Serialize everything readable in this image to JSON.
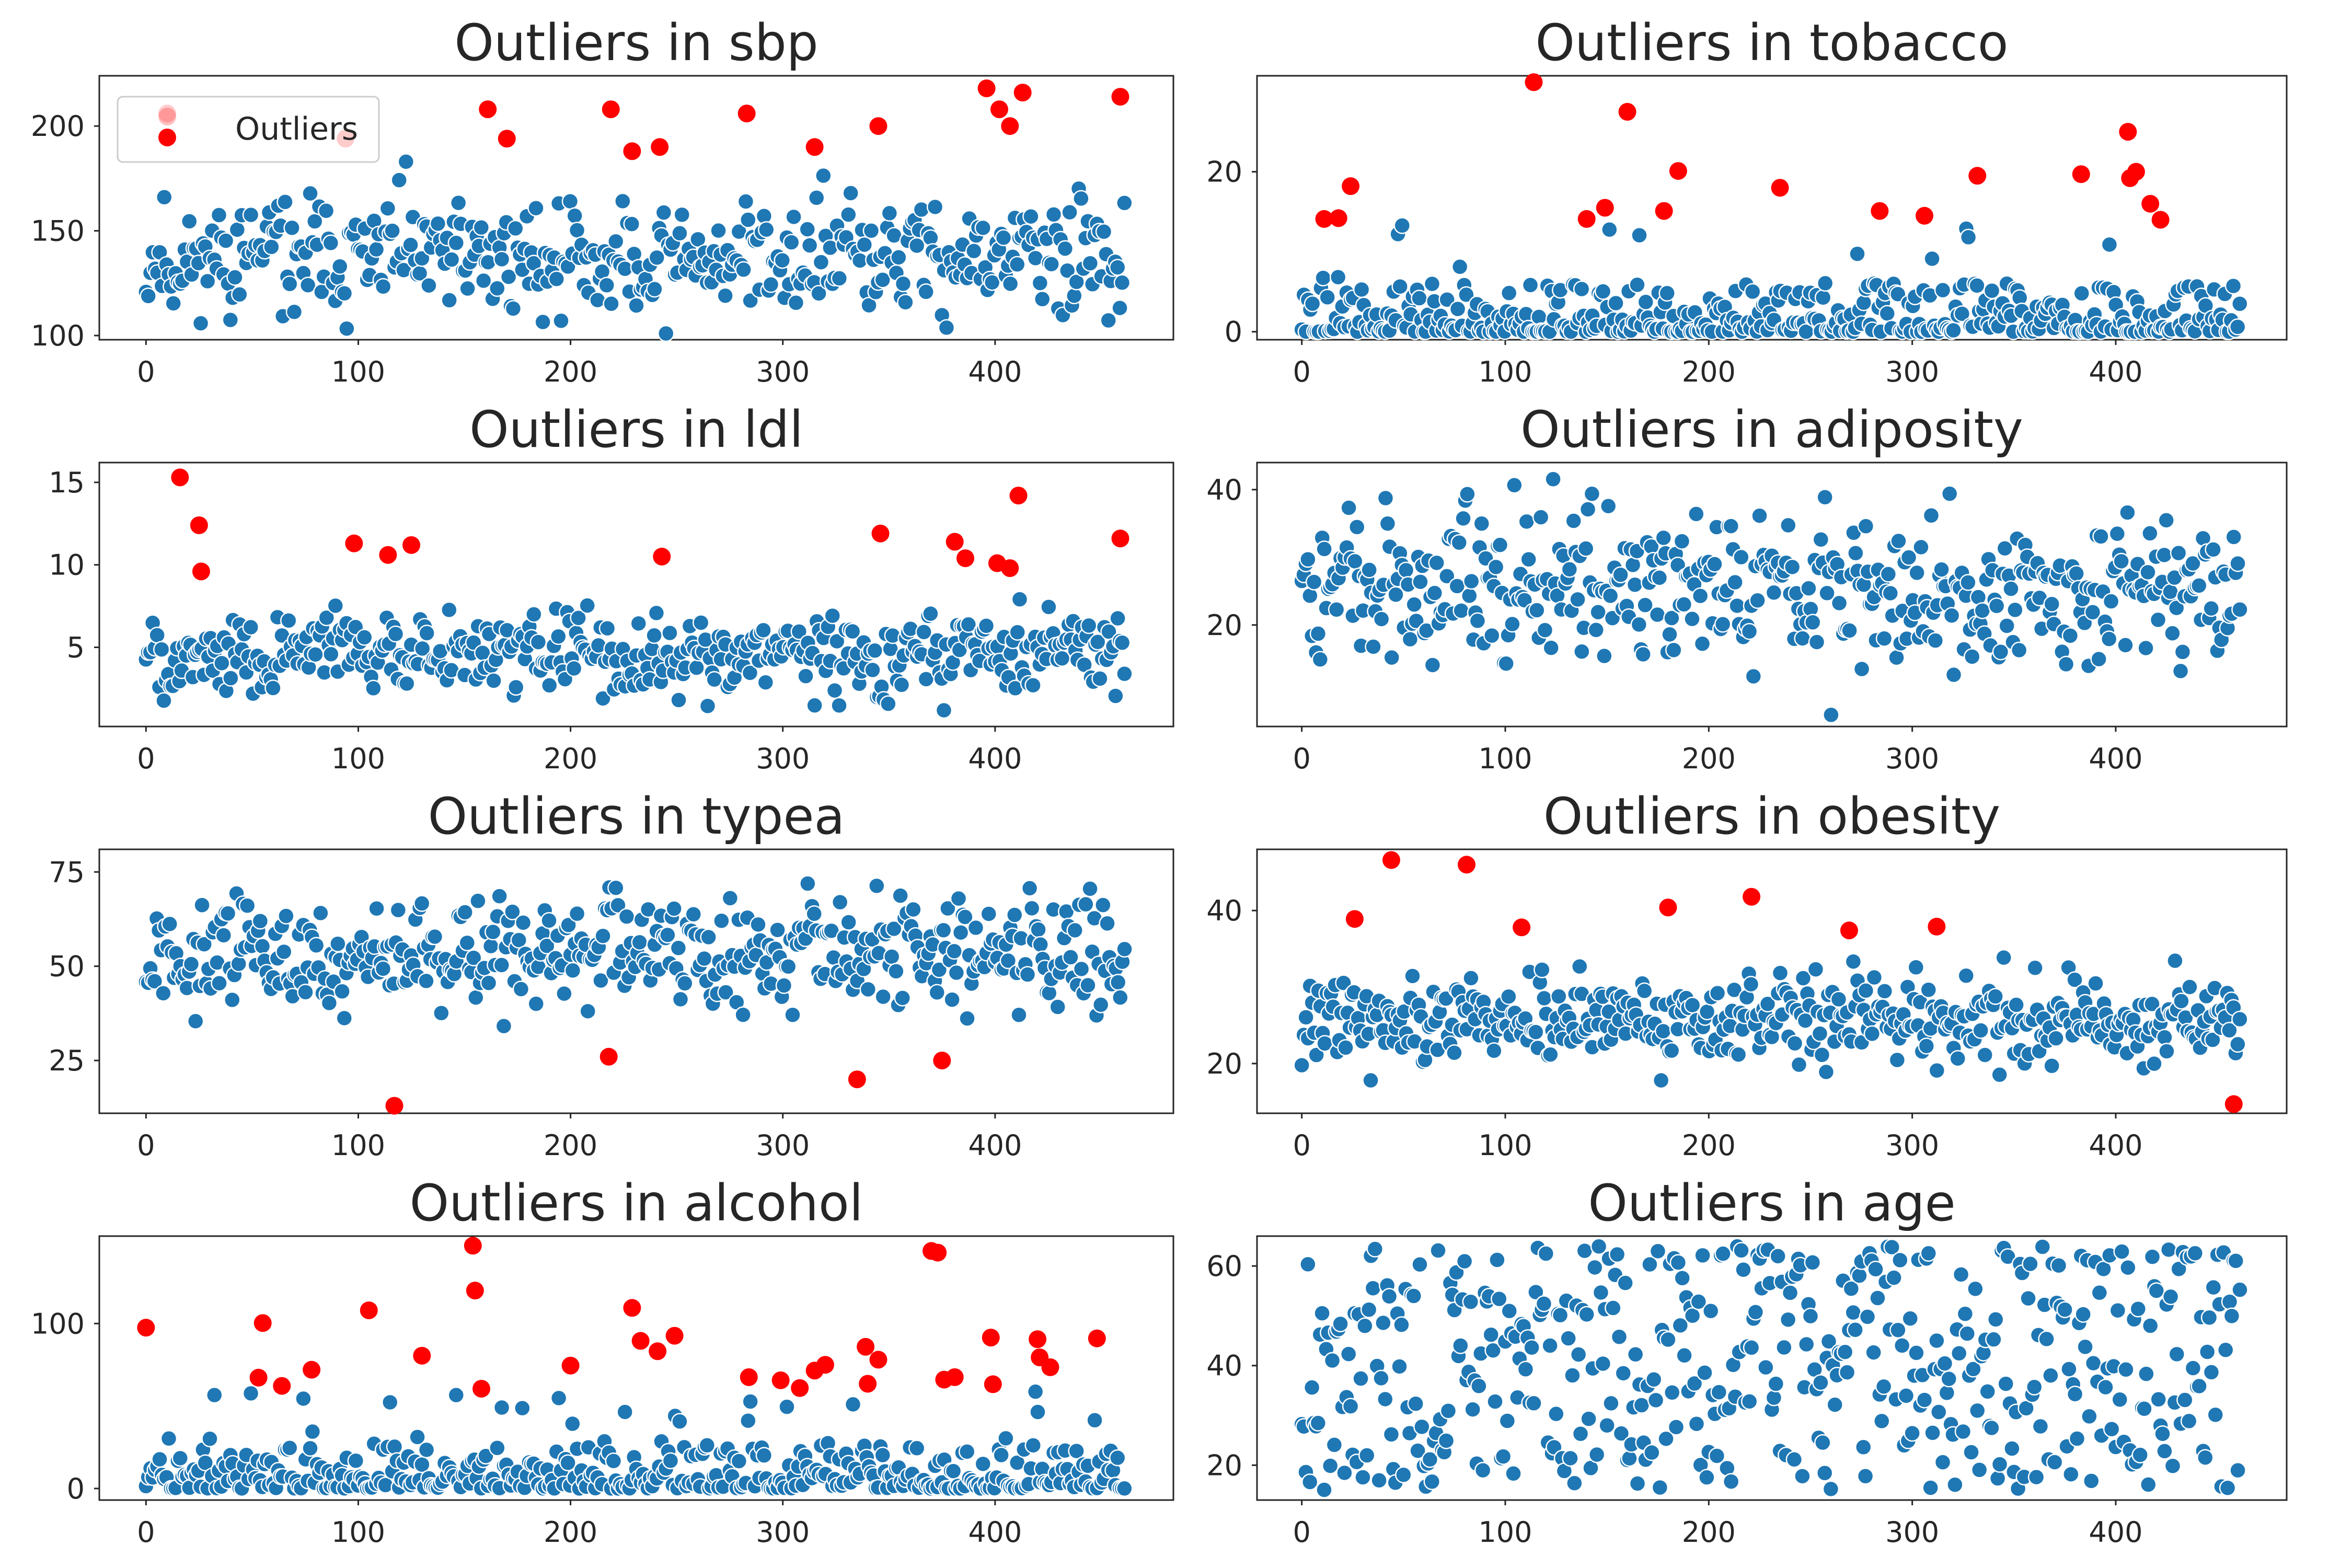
{
  "colors": {
    "normal": "#1f77b4",
    "outlier": "#ff0000",
    "axis": "#262626",
    "background": "#ffffff",
    "point_edge": "#ffffff"
  },
  "chart_data": [
    {
      "type": "scatter",
      "title": "Outliers in sbp",
      "xlim": [
        -22,
        484
      ],
      "ylim": [
        98,
        224
      ],
      "xticks": [
        0,
        100,
        200,
        300,
        400
      ],
      "yticks": [
        100,
        150,
        200
      ],
      "legend": {
        "labels": [
          "Outliers"
        ],
        "placement": "upper-left"
      },
      "outliers": [
        [
          10,
          206
        ],
        [
          94,
          194
        ],
        [
          161,
          208
        ],
        [
          170,
          194
        ],
        [
          219,
          208
        ],
        [
          229,
          188
        ],
        [
          242,
          190
        ],
        [
          283,
          206
        ],
        [
          315,
          190
        ],
        [
          345,
          200
        ],
        [
          396,
          218
        ],
        [
          402,
          208
        ],
        [
          407,
          200
        ],
        [
          413,
          216
        ],
        [
          459,
          214
        ]
      ],
      "normal": {
        "n": 430,
        "center": 137,
        "spread": 18,
        "min": 101,
        "max": 183,
        "seed": 11
      }
    },
    {
      "type": "scatter",
      "title": "Outliers in tobacco",
      "xlim": [
        -22,
        484
      ],
      "ylim": [
        -1,
        32
      ],
      "xticks": [
        0,
        100,
        200,
        300,
        400
      ],
      "yticks": [
        0,
        20
      ],
      "outliers": [
        [
          11,
          14.1
        ],
        [
          18,
          14.2
        ],
        [
          24,
          18.2
        ],
        [
          114,
          31.2
        ],
        [
          140,
          14.1
        ],
        [
          149,
          15.5
        ],
        [
          160,
          27.5
        ],
        [
          178,
          15.1
        ],
        [
          185,
          20.1
        ],
        [
          235,
          18.0
        ],
        [
          284,
          15.1
        ],
        [
          306,
          14.5
        ],
        [
          332,
          19.5
        ],
        [
          383,
          19.7
        ],
        [
          406,
          25.0
        ],
        [
          407,
          19.2
        ],
        [
          410,
          20.0
        ],
        [
          417,
          16.0
        ],
        [
          422,
          14.0
        ]
      ],
      "normal": {
        "n": 440,
        "center": 2.5,
        "spread": 3.5,
        "min": 0,
        "max": 13.5,
        "seed": 22,
        "skew": true
      }
    },
    {
      "type": "scatter",
      "title": "Outliers in ldl",
      "xlim": [
        -22,
        484
      ],
      "ylim": [
        0.2,
        16.2
      ],
      "xticks": [
        0,
        100,
        200,
        300,
        400
      ],
      "yticks": [
        5,
        10,
        15
      ],
      "outliers": [
        [
          16,
          15.3
        ],
        [
          25,
          12.4
        ],
        [
          26,
          9.6
        ],
        [
          98,
          11.3
        ],
        [
          114,
          10.6
        ],
        [
          125,
          11.2
        ],
        [
          243,
          10.5
        ],
        [
          346,
          11.9
        ],
        [
          381,
          11.4
        ],
        [
          386,
          10.4
        ],
        [
          401,
          10.1
        ],
        [
          407,
          9.8
        ],
        [
          411,
          14.2
        ],
        [
          459,
          11.6
        ]
      ],
      "normal": {
        "n": 440,
        "center": 4.6,
        "spread": 1.6,
        "min": 1.0,
        "max": 9.2,
        "seed": 33
      }
    },
    {
      "type": "scatter",
      "title": "Outliers in adiposity",
      "xlim": [
        -22,
        484
      ],
      "ylim": [
        5,
        44
      ],
      "xticks": [
        0,
        100,
        200,
        300,
        400
      ],
      "yticks": [
        20,
        40
      ],
      "outliers": [],
      "normal": {
        "n": 460,
        "center": 25.5,
        "spread": 7.5,
        "min": 6.7,
        "max": 42.5,
        "seed": 44
      }
    },
    {
      "type": "scatter",
      "title": "Outliers in typea",
      "xlim": [
        -22,
        484
      ],
      "ylim": [
        11,
        81
      ],
      "xticks": [
        0,
        100,
        200,
        300,
        400
      ],
      "yticks": [
        25,
        50,
        75
      ],
      "outliers": [
        [
          117,
          13
        ],
        [
          218,
          26
        ],
        [
          335,
          20
        ],
        [
          375,
          25
        ]
      ],
      "normal": {
        "n": 455,
        "center": 53,
        "spread": 9,
        "min": 29,
        "max": 78,
        "seed": 55
      }
    },
    {
      "type": "scatter",
      "title": "Outliers in obesity",
      "xlim": [
        -22,
        484
      ],
      "ylim": [
        13.5,
        48
      ],
      "xticks": [
        0,
        100,
        200,
        300,
        400
      ],
      "yticks": [
        20,
        40
      ],
      "outliers": [
        [
          26,
          38.9
        ],
        [
          44,
          46.6
        ],
        [
          81,
          46.0
        ],
        [
          108,
          37.8
        ],
        [
          180,
          40.4
        ],
        [
          221,
          41.8
        ],
        [
          269,
          37.4
        ],
        [
          312,
          37.9
        ],
        [
          458,
          14.7
        ]
      ],
      "normal": {
        "n": 450,
        "center": 26,
        "spread": 3.6,
        "min": 17.8,
        "max": 35.5,
        "seed": 66
      }
    },
    {
      "type": "scatter",
      "title": "Outliers in alcohol",
      "xlim": [
        -22,
        484
      ],
      "ylim": [
        -7,
        153
      ],
      "xticks": [
        0,
        100,
        200,
        300,
        400
      ],
      "yticks": [
        0,
        100
      ],
      "outliers": [
        [
          0,
          97.5
        ],
        [
          53,
          67.2
        ],
        [
          55,
          100.3
        ],
        [
          64,
          62.2
        ],
        [
          78,
          72.0
        ],
        [
          105,
          108.0
        ],
        [
          130,
          80.5
        ],
        [
          154,
          147.2
        ],
        [
          155,
          120.0
        ],
        [
          158,
          60.5
        ],
        [
          200,
          74.5
        ],
        [
          229,
          109.5
        ],
        [
          233,
          89.5
        ],
        [
          241,
          83.2
        ],
        [
          249,
          92.6
        ],
        [
          284,
          67.5
        ],
        [
          299,
          65.6
        ],
        [
          308,
          60.9
        ],
        [
          315,
          71.5
        ],
        [
          320,
          75.0
        ],
        [
          339,
          85.9
        ],
        [
          340,
          63.5
        ],
        [
          345,
          78.1
        ],
        [
          370,
          144.0
        ],
        [
          373,
          143.0
        ],
        [
          376,
          66.0
        ],
        [
          381,
          67.5
        ],
        [
          398,
          91.5
        ],
        [
          399,
          63.2
        ],
        [
          420,
          90.5
        ],
        [
          421,
          79.5
        ],
        [
          426,
          73.5
        ],
        [
          448,
          91.0
        ]
      ],
      "normal": {
        "n": 430,
        "center": 8,
        "spread": 12,
        "min": 0,
        "max": 59,
        "seed": 77,
        "skew": true
      }
    },
    {
      "type": "scatter",
      "title": "Outliers in age",
      "xlim": [
        -22,
        484
      ],
      "ylim": [
        13,
        66
      ],
      "xticks": [
        0,
        100,
        200,
        300,
        400
      ],
      "yticks": [
        20,
        40,
        60
      ],
      "outliers": [],
      "normal": {
        "n": 462,
        "center": 43,
        "spread": 14,
        "min": 15,
        "max": 64,
        "seed": 88,
        "uniform": true
      }
    }
  ]
}
